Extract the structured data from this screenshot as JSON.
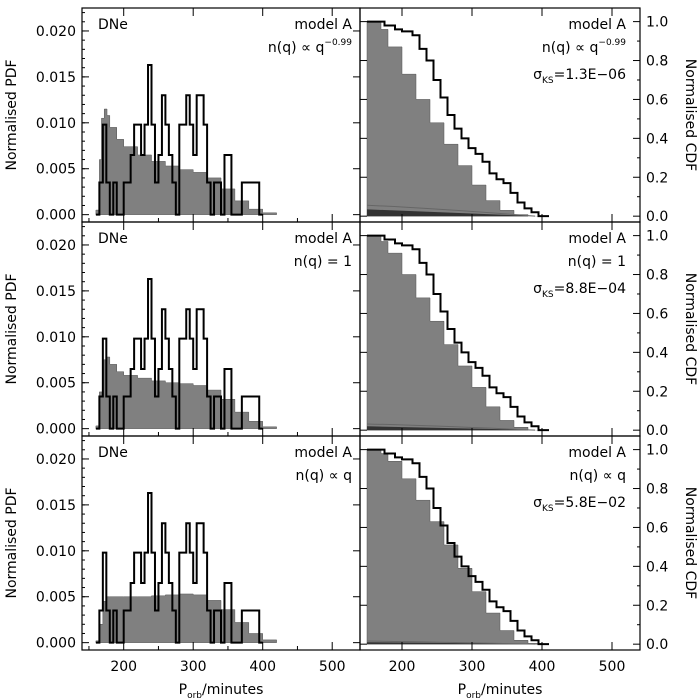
{
  "chart_data": {
    "type": "histogram-grid",
    "x_axis": {
      "label_main": "P",
      "label_sub": "orb",
      "label_rest": "/minutes",
      "range": [
        140,
        540
      ],
      "ticks": [
        200,
        300,
        400,
        500
      ],
      "tick_labels": [
        "200",
        "300",
        "400",
        "500"
      ]
    },
    "left_axis": {
      "label": "Normalised PDF",
      "range": [
        -0.0008,
        0.0225
      ],
      "ticks": [
        0.0,
        0.005,
        0.01,
        0.015,
        0.02
      ],
      "tick_labels": [
        "0.000",
        "0.005",
        "0.010",
        "0.015",
        "0.020"
      ]
    },
    "right_axis": {
      "label": "Normalised CDF",
      "range": [
        -0.03,
        1.07
      ],
      "ticks": [
        0.0,
        0.2,
        0.4,
        0.6,
        0.8,
        1.0
      ],
      "tick_labels": [
        "0.0",
        "0.2",
        "0.4",
        "0.6",
        "0.8",
        "1.0"
      ]
    },
    "sample_label": "DNe",
    "model_name": "model A",
    "rows": [
      {
        "nq_text": "n(q) ∝ q",
        "nq_exp": "−0.99",
        "sigma_label": "σ",
        "sigma_sub": "KS",
        "sigma_value": "=1.3E−06",
        "pdf_model": [
          {
            "x": 160,
            "y": 0.0005
          },
          {
            "x": 165,
            "y": 0.006
          },
          {
            "x": 168,
            "y": 0.0105
          },
          {
            "x": 172,
            "y": 0.0115
          },
          {
            "x": 176,
            "y": 0.0108
          },
          {
            "x": 180,
            "y": 0.0095
          },
          {
            "x": 190,
            "y": 0.0082
          },
          {
            "x": 200,
            "y": 0.0074
          },
          {
            "x": 220,
            "y": 0.0065
          },
          {
            "x": 240,
            "y": 0.0058
          },
          {
            "x": 260,
            "y": 0.0053
          },
          {
            "x": 280,
            "y": 0.0049
          },
          {
            "x": 300,
            "y": 0.0046
          },
          {
            "x": 320,
            "y": 0.004
          },
          {
            "x": 340,
            "y": 0.0028
          },
          {
            "x": 360,
            "y": 0.0015
          },
          {
            "x": 380,
            "y": 0.0006
          },
          {
            "x": 400,
            "y": 0.0002
          },
          {
            "x": 420,
            "y": 0.0
          }
        ],
        "cdf_model": [
          {
            "x": 150,
            "y": 1.0
          },
          {
            "x": 165,
            "y": 1.0
          },
          {
            "x": 170,
            "y": 0.96
          },
          {
            "x": 180,
            "y": 0.87
          },
          {
            "x": 200,
            "y": 0.73
          },
          {
            "x": 220,
            "y": 0.6
          },
          {
            "x": 240,
            "y": 0.48
          },
          {
            "x": 260,
            "y": 0.37
          },
          {
            "x": 280,
            "y": 0.26
          },
          {
            "x": 300,
            "y": 0.16
          },
          {
            "x": 320,
            "y": 0.08
          },
          {
            "x": 340,
            "y": 0.03
          },
          {
            "x": 360,
            "y": 0.008
          },
          {
            "x": 380,
            "y": 0.0
          }
        ],
        "cdf_obs": [
          {
            "x": 150,
            "y": 1.0
          },
          {
            "x": 170,
            "y": 1.0
          },
          {
            "x": 175,
            "y": 0.98
          },
          {
            "x": 190,
            "y": 0.96
          },
          {
            "x": 200,
            "y": 0.95
          },
          {
            "x": 215,
            "y": 0.93
          },
          {
            "x": 225,
            "y": 0.86
          },
          {
            "x": 235,
            "y": 0.8
          },
          {
            "x": 245,
            "y": 0.7
          },
          {
            "x": 255,
            "y": 0.61
          },
          {
            "x": 265,
            "y": 0.52
          },
          {
            "x": 275,
            "y": 0.45
          },
          {
            "x": 285,
            "y": 0.4
          },
          {
            "x": 295,
            "y": 0.35
          },
          {
            "x": 305,
            "y": 0.32
          },
          {
            "x": 315,
            "y": 0.28
          },
          {
            "x": 325,
            "y": 0.22
          },
          {
            "x": 335,
            "y": 0.19
          },
          {
            "x": 345,
            "y": 0.17
          },
          {
            "x": 355,
            "y": 0.12
          },
          {
            "x": 365,
            "y": 0.07
          },
          {
            "x": 375,
            "y": 0.04
          },
          {
            "x": 385,
            "y": 0.02
          },
          {
            "x": 395,
            "y": 0.0
          }
        ],
        "dark_band": 0.035
      },
      {
        "nq_text": "n(q) = 1",
        "nq_exp": "",
        "sigma_label": "σ",
        "sigma_sub": "KS",
        "sigma_value": "=8.8E−04",
        "pdf_model": [
          {
            "x": 160,
            "y": 0.0003
          },
          {
            "x": 165,
            "y": 0.004
          },
          {
            "x": 170,
            "y": 0.0075
          },
          {
            "x": 175,
            "y": 0.0078
          },
          {
            "x": 180,
            "y": 0.007
          },
          {
            "x": 190,
            "y": 0.0062
          },
          {
            "x": 200,
            "y": 0.0058
          },
          {
            "x": 220,
            "y": 0.0055
          },
          {
            "x": 240,
            "y": 0.0052
          },
          {
            "x": 260,
            "y": 0.005
          },
          {
            "x": 280,
            "y": 0.0049
          },
          {
            "x": 300,
            "y": 0.0047
          },
          {
            "x": 320,
            "y": 0.0042
          },
          {
            "x": 340,
            "y": 0.0032
          },
          {
            "x": 360,
            "y": 0.0018
          },
          {
            "x": 380,
            "y": 0.0008
          },
          {
            "x": 400,
            "y": 0.0002
          },
          {
            "x": 420,
            "y": 0.0
          }
        ],
        "cdf_model": [
          {
            "x": 150,
            "y": 1.0
          },
          {
            "x": 165,
            "y": 1.0
          },
          {
            "x": 170,
            "y": 0.97
          },
          {
            "x": 180,
            "y": 0.91
          },
          {
            "x": 200,
            "y": 0.8
          },
          {
            "x": 220,
            "y": 0.68
          },
          {
            "x": 240,
            "y": 0.56
          },
          {
            "x": 260,
            "y": 0.44
          },
          {
            "x": 280,
            "y": 0.33
          },
          {
            "x": 300,
            "y": 0.22
          },
          {
            "x": 320,
            "y": 0.12
          },
          {
            "x": 340,
            "y": 0.05
          },
          {
            "x": 360,
            "y": 0.015
          },
          {
            "x": 380,
            "y": 0.0
          }
        ],
        "cdf_obs": [
          {
            "x": 150,
            "y": 1.0
          },
          {
            "x": 170,
            "y": 1.0
          },
          {
            "x": 175,
            "y": 0.98
          },
          {
            "x": 190,
            "y": 0.96
          },
          {
            "x": 200,
            "y": 0.95
          },
          {
            "x": 215,
            "y": 0.93
          },
          {
            "x": 225,
            "y": 0.86
          },
          {
            "x": 235,
            "y": 0.8
          },
          {
            "x": 245,
            "y": 0.7
          },
          {
            "x": 255,
            "y": 0.61
          },
          {
            "x": 265,
            "y": 0.52
          },
          {
            "x": 275,
            "y": 0.45
          },
          {
            "x": 285,
            "y": 0.4
          },
          {
            "x": 295,
            "y": 0.35
          },
          {
            "x": 305,
            "y": 0.32
          },
          {
            "x": 315,
            "y": 0.28
          },
          {
            "x": 325,
            "y": 0.22
          },
          {
            "x": 335,
            "y": 0.19
          },
          {
            "x": 345,
            "y": 0.17
          },
          {
            "x": 355,
            "y": 0.12
          },
          {
            "x": 365,
            "y": 0.07
          },
          {
            "x": 375,
            "y": 0.04
          },
          {
            "x": 385,
            "y": 0.02
          },
          {
            "x": 395,
            "y": 0.0
          }
        ],
        "dark_band": 0.02
      },
      {
        "nq_text": "n(q) ∝ q",
        "nq_exp": "",
        "sigma_label": "σ",
        "sigma_sub": "KS",
        "sigma_value": "=5.8E−02",
        "pdf_model": [
          {
            "x": 160,
            "y": 0.0002
          },
          {
            "x": 165,
            "y": 0.002
          },
          {
            "x": 170,
            "y": 0.0045
          },
          {
            "x": 175,
            "y": 0.005
          },
          {
            "x": 180,
            "y": 0.005
          },
          {
            "x": 200,
            "y": 0.005
          },
          {
            "x": 220,
            "y": 0.005
          },
          {
            "x": 240,
            "y": 0.0051
          },
          {
            "x": 260,
            "y": 0.0052
          },
          {
            "x": 280,
            "y": 0.0053
          },
          {
            "x": 300,
            "y": 0.0052
          },
          {
            "x": 320,
            "y": 0.0046
          },
          {
            "x": 340,
            "y": 0.0036
          },
          {
            "x": 360,
            "y": 0.0022
          },
          {
            "x": 380,
            "y": 0.001
          },
          {
            "x": 400,
            "y": 0.0003
          },
          {
            "x": 420,
            "y": 0.0
          }
        ],
        "cdf_model": [
          {
            "x": 150,
            "y": 1.0
          },
          {
            "x": 165,
            "y": 1.0
          },
          {
            "x": 170,
            "y": 0.98
          },
          {
            "x": 180,
            "y": 0.94
          },
          {
            "x": 200,
            "y": 0.85
          },
          {
            "x": 220,
            "y": 0.74
          },
          {
            "x": 240,
            "y": 0.63
          },
          {
            "x": 260,
            "y": 0.51
          },
          {
            "x": 280,
            "y": 0.39
          },
          {
            "x": 300,
            "y": 0.27
          },
          {
            "x": 320,
            "y": 0.16
          },
          {
            "x": 340,
            "y": 0.07
          },
          {
            "x": 360,
            "y": 0.02
          },
          {
            "x": 380,
            "y": 0.004
          },
          {
            "x": 400,
            "y": 0.0
          }
        ],
        "cdf_obs": [
          {
            "x": 150,
            "y": 1.0
          },
          {
            "x": 170,
            "y": 1.0
          },
          {
            "x": 175,
            "y": 0.98
          },
          {
            "x": 190,
            "y": 0.96
          },
          {
            "x": 200,
            "y": 0.95
          },
          {
            "x": 215,
            "y": 0.93
          },
          {
            "x": 225,
            "y": 0.86
          },
          {
            "x": 235,
            "y": 0.8
          },
          {
            "x": 245,
            "y": 0.7
          },
          {
            "x": 255,
            "y": 0.61
          },
          {
            "x": 265,
            "y": 0.52
          },
          {
            "x": 275,
            "y": 0.45
          },
          {
            "x": 285,
            "y": 0.4
          },
          {
            "x": 295,
            "y": 0.35
          },
          {
            "x": 305,
            "y": 0.32
          },
          {
            "x": 315,
            "y": 0.28
          },
          {
            "x": 325,
            "y": 0.22
          },
          {
            "x": 335,
            "y": 0.19
          },
          {
            "x": 345,
            "y": 0.17
          },
          {
            "x": 355,
            "y": 0.12
          },
          {
            "x": 365,
            "y": 0.07
          },
          {
            "x": 375,
            "y": 0.04
          },
          {
            "x": 385,
            "y": 0.02
          },
          {
            "x": 395,
            "y": 0.0
          }
        ],
        "dark_band": 0.01
      }
    ],
    "pdf_observed": [
      {
        "x0": 160,
        "x1": 165,
        "y": 0.0
      },
      {
        "x0": 165,
        "x1": 170,
        "y": 0.0035
      },
      {
        "x0": 170,
        "x1": 175,
        "y": 0.0098
      },
      {
        "x0": 175,
        "x1": 180,
        "y": 0.0035
      },
      {
        "x0": 180,
        "x1": 185,
        "y": 0.0
      },
      {
        "x0": 185,
        "x1": 190,
        "y": 0.0035
      },
      {
        "x0": 190,
        "x1": 195,
        "y": 0.0
      },
      {
        "x0": 195,
        "x1": 200,
        "y": 0.0
      },
      {
        "x0": 200,
        "x1": 205,
        "y": 0.0035
      },
      {
        "x0": 205,
        "x1": 210,
        "y": 0.0035
      },
      {
        "x0": 210,
        "x1": 215,
        "y": 0.0065
      },
      {
        "x0": 215,
        "x1": 220,
        "y": 0.0098
      },
      {
        "x0": 220,
        "x1": 225,
        "y": 0.0098
      },
      {
        "x0": 225,
        "x1": 230,
        "y": 0.0065
      },
      {
        "x0": 230,
        "x1": 235,
        "y": 0.0098
      },
      {
        "x0": 235,
        "x1": 240,
        "y": 0.0163
      },
      {
        "x0": 240,
        "x1": 245,
        "y": 0.0098
      },
      {
        "x0": 245,
        "x1": 250,
        "y": 0.0035
      },
      {
        "x0": 250,
        "x1": 255,
        "y": 0.0065
      },
      {
        "x0": 255,
        "x1": 260,
        "y": 0.013
      },
      {
        "x0": 260,
        "x1": 265,
        "y": 0.0098
      },
      {
        "x0": 265,
        "x1": 270,
        "y": 0.0065
      },
      {
        "x0": 270,
        "x1": 275,
        "y": 0.0035
      },
      {
        "x0": 275,
        "x1": 280,
        "y": 0.0
      },
      {
        "x0": 280,
        "x1": 285,
        "y": 0.0098
      },
      {
        "x0": 285,
        "x1": 290,
        "y": 0.0098
      },
      {
        "x0": 290,
        "x1": 295,
        "y": 0.013
      },
      {
        "x0": 295,
        "x1": 300,
        "y": 0.0098
      },
      {
        "x0": 300,
        "x1": 305,
        "y": 0.0065
      },
      {
        "x0": 305,
        "x1": 310,
        "y": 0.013
      },
      {
        "x0": 310,
        "x1": 315,
        "y": 0.013
      },
      {
        "x0": 315,
        "x1": 320,
        "y": 0.0098
      },
      {
        "x0": 320,
        "x1": 325,
        "y": 0.0035
      },
      {
        "x0": 325,
        "x1": 330,
        "y": 0.0
      },
      {
        "x0": 330,
        "x1": 335,
        "y": 0.0035
      },
      {
        "x0": 335,
        "x1": 340,
        "y": 0.0035
      },
      {
        "x0": 340,
        "x1": 345,
        "y": 0.0
      },
      {
        "x0": 345,
        "x1": 350,
        "y": 0.0065
      },
      {
        "x0": 350,
        "x1": 355,
        "y": 0.0065
      },
      {
        "x0": 355,
        "x1": 360,
        "y": 0.0
      },
      {
        "x0": 360,
        "x1": 365,
        "y": 0.0
      },
      {
        "x0": 365,
        "x1": 370,
        "y": 0.0
      },
      {
        "x0": 370,
        "x1": 375,
        "y": 0.0035
      },
      {
        "x0": 375,
        "x1": 380,
        "y": 0.0035
      },
      {
        "x0": 380,
        "x1": 385,
        "y": 0.0035
      },
      {
        "x0": 385,
        "x1": 390,
        "y": 0.0035
      },
      {
        "x0": 390,
        "x1": 395,
        "y": 0.0035
      },
      {
        "x0": 395,
        "x1": 400,
        "y": 0.0
      }
    ]
  }
}
